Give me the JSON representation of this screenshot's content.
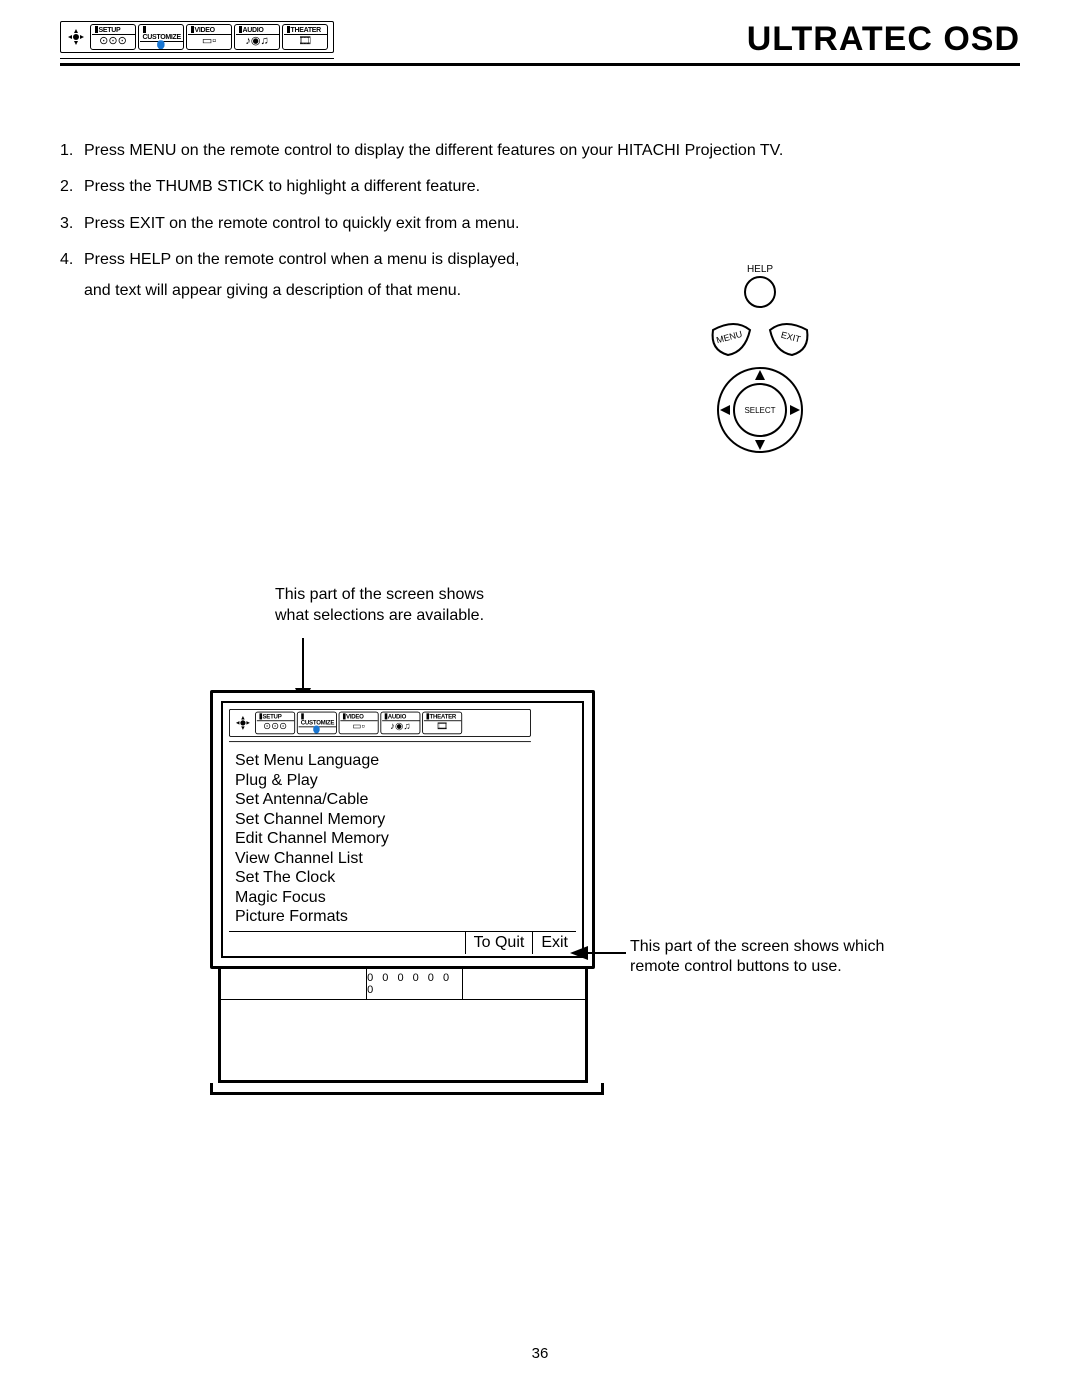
{
  "title": "ULTRATEC OSD",
  "tabbar": {
    "tabs": [
      {
        "label": "SETUP",
        "icon": "⊙⊙⊙"
      },
      {
        "label": "CUSTOMIZE",
        "icon": "👤"
      },
      {
        "label": "VIDEO",
        "icon": "▭▫"
      },
      {
        "label": "AUDIO",
        "icon": "♪◉♫"
      },
      {
        "label": "THEATER",
        "icon": "🎞"
      }
    ]
  },
  "instructions": [
    {
      "n": "1.",
      "text_a": "Press MENU on the remote control to display the different features on your HITACHI Projection TV."
    },
    {
      "n": "2.",
      "text_a": "Press the THUMB STICK to highlight a different feature."
    },
    {
      "n": "3.",
      "text_a": "Press EXIT on the remote control to quickly exit from a menu."
    },
    {
      "n": "4.",
      "text_a": "Press HELP on the remote control when a menu is displayed,",
      "text_b": "and text will appear giving a description of that menu."
    }
  ],
  "remote": {
    "help_label": "HELP",
    "menu_label": "MENU",
    "exit_label": "EXIT",
    "select_label": "SELECT"
  },
  "callouts": {
    "top_line1": "This part of the screen shows",
    "top_line2": "what selections are available.",
    "right_line1": "This part of the screen shows which",
    "right_line2": "remote control buttons to use."
  },
  "tv": {
    "menu_items": [
      "Set Menu Language",
      "Plug & Play",
      "Set Antenna/Cable",
      "Set Channel Memory",
      "Edit Channel Memory",
      "View Channel List",
      "Set The Clock",
      "Magic Focus",
      "Picture Formats"
    ],
    "exit_left": "To Quit",
    "exit_right": "Exit",
    "branding": "0 0 0 0 0 0 0"
  },
  "page_number": "36",
  "colors": {
    "text": "#000000",
    "background": "#ffffff",
    "rule": "#000000"
  },
  "typography": {
    "body_pt": 12,
    "title_pt": 26,
    "title_weight": 800
  }
}
